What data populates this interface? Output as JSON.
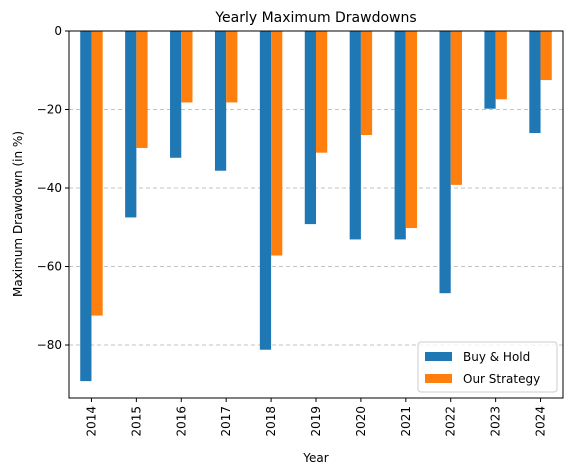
{
  "chart_data": {
    "type": "bar",
    "title": "Yearly Maximum Drawdowns",
    "xlabel": "Year",
    "ylabel": "Maximum Drawdown (in %)",
    "categories": [
      "2014",
      "2015",
      "2016",
      "2017",
      "2018",
      "2019",
      "2020",
      "2021",
      "2022",
      "2023",
      "2024"
    ],
    "series": [
      {
        "name": "Buy & Hold",
        "color": "#1f77b4",
        "values": [
          -89.2,
          -47.5,
          -32.3,
          -35.6,
          -81.2,
          -49.2,
          -53.1,
          -53.1,
          -66.8,
          -19.8,
          -26.0
        ]
      },
      {
        "name": "Our Strategy",
        "color": "#ff7f0e",
        "values": [
          -72.5,
          -29.8,
          -18.2,
          -18.2,
          -57.2,
          -31.0,
          -26.5,
          -50.2,
          -39.2,
          -17.4,
          -12.5
        ]
      }
    ],
    "ylim": [
      -93.5,
      0
    ],
    "yticks": [
      0,
      -20,
      -40,
      -60,
      -80
    ],
    "ytick_labels": [
      "0",
      "−20",
      "−40",
      "−60",
      "−80"
    ],
    "grid": {
      "axis": "y",
      "style": "dashed"
    },
    "legend": {
      "position": "lower-right"
    }
  }
}
